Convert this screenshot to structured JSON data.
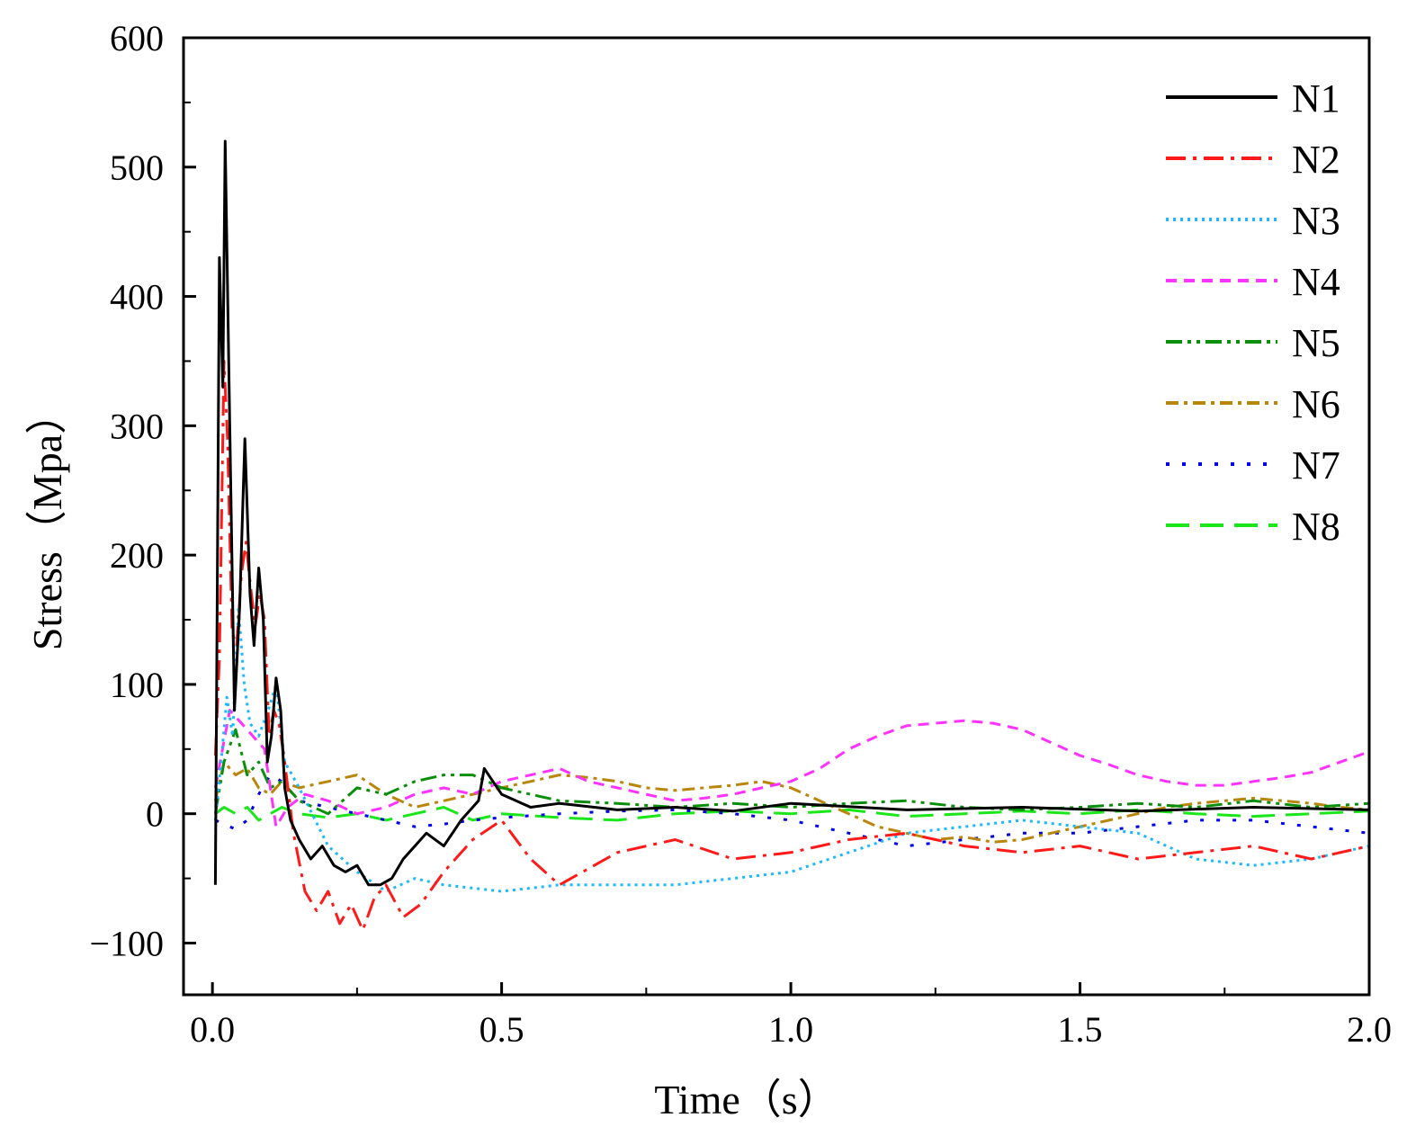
{
  "chart_data": {
    "type": "line",
    "title": "",
    "xlabel": "Time（s）",
    "ylabel": "Stress（Mpa）",
    "xlim": [
      -0.05,
      2.0
    ],
    "ylim": [
      -140,
      600
    ],
    "x_ticks": [
      0.0,
      0.5,
      1.0,
      1.5,
      2.0
    ],
    "x_tick_labels": [
      "0.0",
      "0.5",
      "1.0",
      "1.5",
      "2.0"
    ],
    "y_ticks": [
      -100,
      0,
      100,
      200,
      300,
      400,
      500,
      600
    ],
    "y_tick_labels": [
      "−100",
      "0",
      "100",
      "200",
      "300",
      "400",
      "500",
      "600"
    ],
    "grid": false,
    "legend_position": "top-right",
    "series": [
      {
        "name": "N1",
        "color": "#000000",
        "dash": "solid",
        "x": [
          0.005,
          0.012,
          0.018,
          0.022,
          0.03,
          0.038,
          0.047,
          0.056,
          0.065,
          0.072,
          0.08,
          0.088,
          0.095,
          0.102,
          0.11,
          0.118,
          0.125,
          0.135,
          0.15,
          0.17,
          0.19,
          0.21,
          0.23,
          0.25,
          0.27,
          0.29,
          0.31,
          0.33,
          0.35,
          0.37,
          0.4,
          0.43,
          0.46,
          0.47,
          0.5,
          0.55,
          0.6,
          0.7,
          0.8,
          0.9,
          1.0,
          1.2,
          1.4,
          1.6,
          1.8,
          2.0
        ],
        "values": [
          -55,
          430,
          330,
          520,
          300,
          80,
          160,
          290,
          170,
          130,
          190,
          150,
          40,
          60,
          105,
          80,
          20,
          -5,
          -20,
          -35,
          -25,
          -40,
          -45,
          -40,
          -55,
          -55,
          -50,
          -35,
          -25,
          -15,
          -25,
          -5,
          10,
          35,
          15,
          5,
          8,
          3,
          5,
          2,
          8,
          3,
          5,
          2,
          5,
          3
        ]
      },
      {
        "name": "N2",
        "color": "#ff1a1a",
        "dash": "long-dash-dot",
        "x": [
          0.005,
          0.012,
          0.02,
          0.026,
          0.034,
          0.042,
          0.05,
          0.058,
          0.066,
          0.074,
          0.082,
          0.09,
          0.098,
          0.106,
          0.115,
          0.125,
          0.14,
          0.16,
          0.18,
          0.2,
          0.22,
          0.24,
          0.26,
          0.28,
          0.3,
          0.33,
          0.36,
          0.4,
          0.45,
          0.5,
          0.55,
          0.6,
          0.7,
          0.8,
          0.9,
          1.0,
          1.1,
          1.2,
          1.3,
          1.4,
          1.5,
          1.6,
          1.7,
          1.8,
          1.9,
          2.0
        ],
        "values": [
          45,
          120,
          350,
          290,
          140,
          130,
          185,
          210,
          175,
          145,
          170,
          150,
          60,
          80,
          70,
          40,
          -15,
          -60,
          -75,
          -60,
          -85,
          -70,
          -90,
          -65,
          -55,
          -80,
          -70,
          -45,
          -20,
          -5,
          -35,
          -55,
          -30,
          -20,
          -35,
          -30,
          -20,
          -15,
          -25,
          -30,
          -25,
          -35,
          -30,
          -25,
          -35,
          -25
        ]
      },
      {
        "name": "N3",
        "color": "#1ab8ff",
        "dash": "dot",
        "x": [
          0.005,
          0.015,
          0.025,
          0.035,
          0.045,
          0.055,
          0.065,
          0.08,
          0.1,
          0.11,
          0.125,
          0.15,
          0.2,
          0.25,
          0.3,
          0.35,
          0.4,
          0.5,
          0.6,
          0.7,
          0.8,
          0.9,
          1.0,
          1.1,
          1.2,
          1.3,
          1.4,
          1.5,
          1.6,
          1.7,
          1.8,
          1.9,
          2.0
        ],
        "values": [
          -5,
          40,
          90,
          60,
          160,
          100,
          70,
          60,
          85,
          100,
          40,
          20,
          -25,
          -45,
          -60,
          -50,
          -55,
          -60,
          -55,
          -55,
          -55,
          -50,
          -45,
          -30,
          -15,
          -10,
          -5,
          -10,
          -15,
          -35,
          -40,
          -35,
          -25
        ]
      },
      {
        "name": "N4",
        "color": "#ff33ff",
        "dash": "dash",
        "x": [
          0.005,
          0.03,
          0.06,
          0.09,
          0.11,
          0.13,
          0.16,
          0.2,
          0.25,
          0.3,
          0.35,
          0.4,
          0.45,
          0.5,
          0.55,
          0.6,
          0.65,
          0.7,
          0.75,
          0.8,
          0.85,
          0.9,
          0.95,
          1.0,
          1.05,
          1.1,
          1.15,
          1.2,
          1.25,
          1.3,
          1.35,
          1.4,
          1.45,
          1.5,
          1.55,
          1.6,
          1.65,
          1.7,
          1.75,
          1.8,
          1.85,
          1.9,
          1.95,
          2.0
        ],
        "values": [
          20,
          80,
          65,
          50,
          -10,
          5,
          15,
          10,
          0,
          5,
          15,
          20,
          15,
          25,
          30,
          35,
          25,
          20,
          15,
          10,
          12,
          15,
          20,
          25,
          35,
          50,
          60,
          68,
          70,
          72,
          70,
          65,
          55,
          45,
          38,
          30,
          25,
          22,
          22,
          25,
          28,
          32,
          40,
          48
        ]
      },
      {
        "name": "N5",
        "color": "#0a8f0a",
        "dash": "dash-dot-dot",
        "x": [
          0.005,
          0.02,
          0.04,
          0.06,
          0.08,
          0.1,
          0.12,
          0.15,
          0.2,
          0.25,
          0.3,
          0.35,
          0.4,
          0.45,
          0.5,
          0.6,
          0.7,
          0.8,
          0.9,
          1.0,
          1.1,
          1.2,
          1.3,
          1.4,
          1.5,
          1.6,
          1.7,
          1.8,
          1.9,
          2.0
        ],
        "values": [
          0,
          40,
          65,
          30,
          40,
          20,
          25,
          10,
          0,
          20,
          15,
          25,
          30,
          30,
          20,
          10,
          8,
          5,
          8,
          5,
          8,
          10,
          5,
          3,
          5,
          8,
          5,
          10,
          5,
          8
        ]
      },
      {
        "name": "N6",
        "color": "#b8860b",
        "dash": "dash-dot",
        "x": [
          0.005,
          0.02,
          0.04,
          0.06,
          0.08,
          0.1,
          0.12,
          0.15,
          0.2,
          0.25,
          0.3,
          0.35,
          0.4,
          0.45,
          0.5,
          0.55,
          0.6,
          0.65,
          0.7,
          0.75,
          0.8,
          0.85,
          0.9,
          0.95,
          1.0,
          1.05,
          1.1,
          1.15,
          1.2,
          1.25,
          1.3,
          1.35,
          1.4,
          1.45,
          1.5,
          1.55,
          1.6,
          1.65,
          1.7,
          1.75,
          1.8,
          1.85,
          1.9,
          1.95,
          2.0
        ],
        "values": [
          10,
          40,
          30,
          35,
          20,
          15,
          25,
          20,
          25,
          30,
          15,
          5,
          10,
          15,
          20,
          25,
          30,
          28,
          25,
          20,
          18,
          20,
          22,
          25,
          20,
          10,
          0,
          -10,
          -15,
          -20,
          -18,
          -22,
          -20,
          -15,
          -10,
          -5,
          0,
          5,
          8,
          10,
          12,
          10,
          8,
          5,
          3
        ]
      },
      {
        "name": "N7",
        "color": "#0000e6",
        "dash": "sparse-dot",
        "x": [
          0.005,
          0.02,
          0.04,
          0.06,
          0.08,
          0.1,
          0.12,
          0.15,
          0.2,
          0.25,
          0.3,
          0.35,
          0.4,
          0.45,
          0.5,
          0.6,
          0.7,
          0.8,
          0.9,
          1.0,
          1.1,
          1.2,
          1.3,
          1.4,
          1.5,
          1.6,
          1.7,
          1.8,
          1.9,
          2.0
        ],
        "values": [
          -5,
          -8,
          -12,
          -5,
          15,
          30,
          25,
          10,
          5,
          0,
          -5,
          -10,
          -8,
          -5,
          -3,
          0,
          2,
          3,
          0,
          -5,
          -15,
          -25,
          -20,
          -15,
          -15,
          -10,
          -5,
          -5,
          -10,
          -15
        ]
      },
      {
        "name": "N8",
        "color": "#1ae61a",
        "dash": "long-dash",
        "x": [
          0.005,
          0.02,
          0.04,
          0.06,
          0.08,
          0.1,
          0.12,
          0.15,
          0.2,
          0.25,
          0.3,
          0.35,
          0.4,
          0.45,
          0.5,
          0.6,
          0.7,
          0.8,
          0.9,
          1.0,
          1.1,
          1.2,
          1.3,
          1.4,
          1.5,
          1.6,
          1.7,
          1.8,
          1.9,
          2.0
        ],
        "values": [
          0,
          5,
          0,
          5,
          -5,
          0,
          5,
          0,
          -3,
          0,
          -5,
          0,
          5,
          -5,
          0,
          -3,
          -5,
          0,
          2,
          0,
          3,
          -2,
          0,
          2,
          0,
          3,
          0,
          -2,
          0,
          2
        ]
      }
    ]
  }
}
